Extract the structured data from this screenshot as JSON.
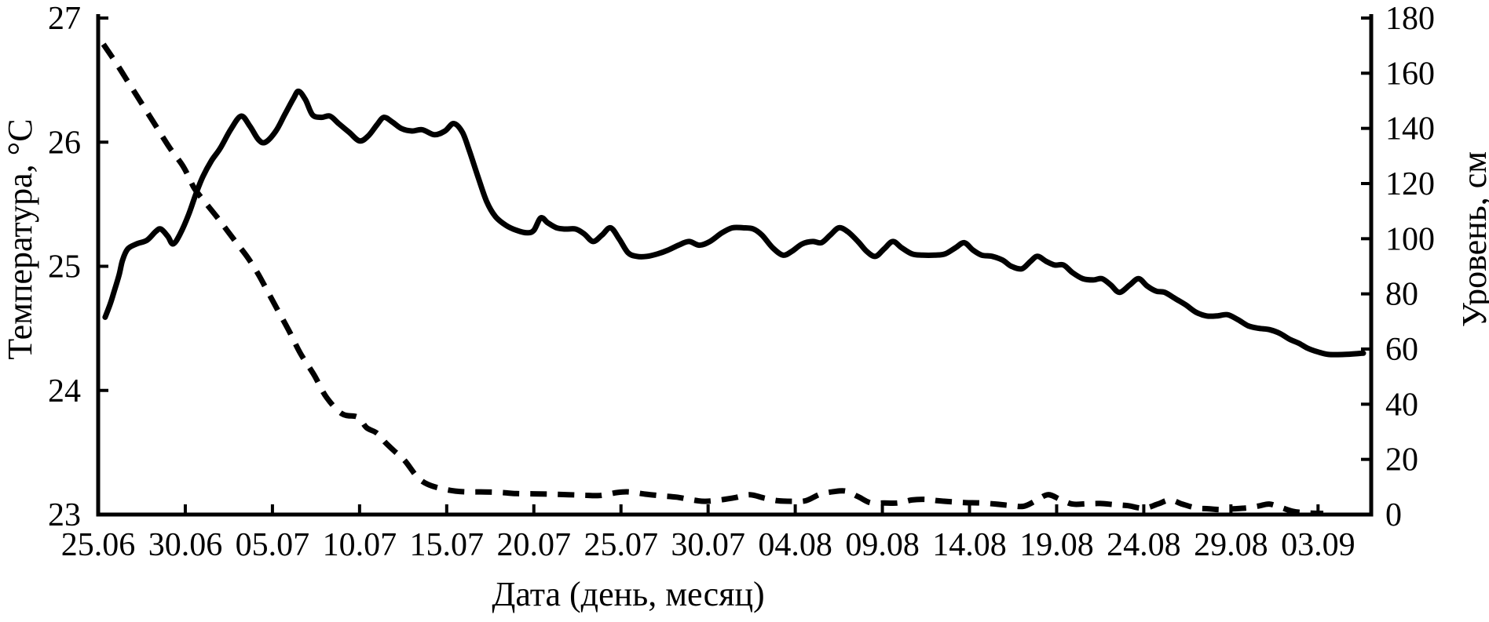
{
  "page": {
    "background": "#ffffff",
    "foreground": "#000000"
  },
  "chart_data": {
    "type": "line",
    "title": "",
    "grid": false,
    "legend": "none",
    "x_axis": {
      "label": "Дата (день, месяц)",
      "tick_labels": [
        "25.06",
        "30.06",
        "05.07",
        "10.07",
        "15.07",
        "20.07",
        "25.07",
        "30.07",
        "04.08",
        "09.08",
        "14.08",
        "19.08",
        "24.08",
        "29.08",
        "03.09"
      ],
      "tick_interval_days": 5,
      "range_days": [
        0,
        73.05
      ]
    },
    "y_left": {
      "label": "Температура, °C",
      "ticks": [
        "23",
        "24",
        "25",
        "26",
        "27"
      ],
      "tick_values": [
        23,
        24,
        25,
        26,
        27
      ],
      "range": [
        23,
        27
      ]
    },
    "y_right": {
      "label": "Уровень, см",
      "ticks": [
        "0",
        "20",
        "40",
        "60",
        "80",
        "100",
        "120",
        "140",
        "160",
        "180"
      ],
      "tick_values": [
        0,
        20,
        40,
        60,
        80,
        100,
        120,
        140,
        160,
        180
      ],
      "range": [
        0,
        180
      ]
    },
    "series": [
      {
        "name": "temperature",
        "axis": "left",
        "style": "solid",
        "color": "#000000",
        "points": [
          [
            0.4,
            24.59
          ],
          [
            0.7,
            24.7
          ],
          [
            0.9,
            24.79
          ],
          [
            1.2,
            24.93
          ],
          [
            1.4,
            25.05
          ],
          [
            1.7,
            25.14
          ],
          [
            2.2,
            25.18
          ],
          [
            2.8,
            25.21
          ],
          [
            3.3,
            25.28
          ],
          [
            3.6,
            25.3
          ],
          [
            4.0,
            25.24
          ],
          [
            4.3,
            25.18
          ],
          [
            4.7,
            25.26
          ],
          [
            5.2,
            25.42
          ],
          [
            5.6,
            25.58
          ],
          [
            6.0,
            25.72
          ],
          [
            6.5,
            25.85
          ],
          [
            7.0,
            25.95
          ],
          [
            7.6,
            26.1
          ],
          [
            8.2,
            26.21
          ],
          [
            8.7,
            26.13
          ],
          [
            9.2,
            26.02
          ],
          [
            9.6,
            26.0
          ],
          [
            10.2,
            26.09
          ],
          [
            10.7,
            26.22
          ],
          [
            11.2,
            26.35
          ],
          [
            11.5,
            26.41
          ],
          [
            11.9,
            26.34
          ],
          [
            12.3,
            26.22
          ],
          [
            12.8,
            26.2
          ],
          [
            13.3,
            26.21
          ],
          [
            13.8,
            26.15
          ],
          [
            14.4,
            26.08
          ],
          [
            15.0,
            26.01
          ],
          [
            15.5,
            26.05
          ],
          [
            16.0,
            26.14
          ],
          [
            16.4,
            26.2
          ],
          [
            16.9,
            26.16
          ],
          [
            17.4,
            26.11
          ],
          [
            18.0,
            26.09
          ],
          [
            18.6,
            26.1
          ],
          [
            19.3,
            26.06
          ],
          [
            19.9,
            26.09
          ],
          [
            20.4,
            26.15
          ],
          [
            20.9,
            26.08
          ],
          [
            21.3,
            25.93
          ],
          [
            21.8,
            25.72
          ],
          [
            22.3,
            25.52
          ],
          [
            22.8,
            25.4
          ],
          [
            23.4,
            25.33
          ],
          [
            24.0,
            25.29
          ],
          [
            24.6,
            25.27
          ],
          [
            25.0,
            25.29
          ],
          [
            25.4,
            25.39
          ],
          [
            25.8,
            25.35
          ],
          [
            26.3,
            25.31
          ],
          [
            26.8,
            25.3
          ],
          [
            27.4,
            25.3
          ],
          [
            27.9,
            25.26
          ],
          [
            28.4,
            25.2
          ],
          [
            28.9,
            25.25
          ],
          [
            29.4,
            25.31
          ],
          [
            29.9,
            25.22
          ],
          [
            30.4,
            25.11
          ],
          [
            30.9,
            25.08
          ],
          [
            31.5,
            25.08
          ],
          [
            32.1,
            25.1
          ],
          [
            32.7,
            25.13
          ],
          [
            33.3,
            25.17
          ],
          [
            33.9,
            25.2
          ],
          [
            34.5,
            25.17
          ],
          [
            35.1,
            25.2
          ],
          [
            35.8,
            25.27
          ],
          [
            36.4,
            25.31
          ],
          [
            37.0,
            25.31
          ],
          [
            37.6,
            25.3
          ],
          [
            38.1,
            25.25
          ],
          [
            38.7,
            25.15
          ],
          [
            39.3,
            25.09
          ],
          [
            39.8,
            25.12
          ],
          [
            40.4,
            25.18
          ],
          [
            41.0,
            25.2
          ],
          [
            41.5,
            25.19
          ],
          [
            42.0,
            25.25
          ],
          [
            42.5,
            25.31
          ],
          [
            43.0,
            25.28
          ],
          [
            43.6,
            25.2
          ],
          [
            44.1,
            25.12
          ],
          [
            44.6,
            25.08
          ],
          [
            45.1,
            25.14
          ],
          [
            45.6,
            25.2
          ],
          [
            46.1,
            25.15
          ],
          [
            46.7,
            25.1
          ],
          [
            47.3,
            25.09
          ],
          [
            48.0,
            25.09
          ],
          [
            48.6,
            25.1
          ],
          [
            49.2,
            25.15
          ],
          [
            49.7,
            25.19
          ],
          [
            50.2,
            25.13
          ],
          [
            50.7,
            25.09
          ],
          [
            51.3,
            25.08
          ],
          [
            51.9,
            25.05
          ],
          [
            52.4,
            25.0
          ],
          [
            53.0,
            24.98
          ],
          [
            53.5,
            25.04
          ],
          [
            53.9,
            25.08
          ],
          [
            54.4,
            25.04
          ],
          [
            54.9,
            25.01
          ],
          [
            55.4,
            25.01
          ],
          [
            55.9,
            24.95
          ],
          [
            56.5,
            24.9
          ],
          [
            57.1,
            24.89
          ],
          [
            57.6,
            24.9
          ],
          [
            58.1,
            24.85
          ],
          [
            58.6,
            24.79
          ],
          [
            59.2,
            24.85
          ],
          [
            59.7,
            24.9
          ],
          [
            60.2,
            24.84
          ],
          [
            60.7,
            24.8
          ],
          [
            61.2,
            24.79
          ],
          [
            61.8,
            24.74
          ],
          [
            62.4,
            24.69
          ],
          [
            63.0,
            24.63
          ],
          [
            63.6,
            24.6
          ],
          [
            64.2,
            24.6
          ],
          [
            64.8,
            24.61
          ],
          [
            65.4,
            24.57
          ],
          [
            66.0,
            24.52
          ],
          [
            66.6,
            24.5
          ],
          [
            67.2,
            24.49
          ],
          [
            67.8,
            24.46
          ],
          [
            68.4,
            24.41
          ],
          [
            68.9,
            24.38
          ],
          [
            69.4,
            24.34
          ],
          [
            70.0,
            24.31
          ],
          [
            70.6,
            24.29
          ],
          [
            71.5,
            24.29
          ],
          [
            72.6,
            24.3
          ]
        ]
      },
      {
        "name": "level",
        "axis": "right",
        "style": "dashed",
        "color": "#000000",
        "points": [
          [
            0.3,
            170.5
          ],
          [
            1.0,
            164
          ],
          [
            1.7,
            157
          ],
          [
            2.5,
            149
          ],
          [
            3.3,
            141
          ],
          [
            4.1,
            133
          ],
          [
            4.9,
            126
          ],
          [
            5.5,
            118.5
          ],
          [
            6.1,
            113.5
          ],
          [
            6.8,
            108
          ],
          [
            7.4,
            103
          ],
          [
            8.0,
            98
          ],
          [
            8.6,
            93
          ],
          [
            9.2,
            87
          ],
          [
            9.8,
            80
          ],
          [
            10.4,
            73
          ],
          [
            11.0,
            66
          ],
          [
            11.6,
            58.5
          ],
          [
            12.4,
            50.5
          ],
          [
            13.1,
            42.5
          ],
          [
            14.0,
            36.5
          ],
          [
            14.9,
            35.3
          ],
          [
            15.4,
            31.5
          ],
          [
            16.0,
            29.5
          ],
          [
            16.5,
            26
          ],
          [
            17.0,
            23
          ],
          [
            17.6,
            19.5
          ],
          [
            18.3,
            13.7
          ],
          [
            18.9,
            11
          ],
          [
            19.7,
            9.4
          ],
          [
            20.5,
            8.5
          ],
          [
            21.3,
            8.2
          ],
          [
            22.2,
            8.2
          ],
          [
            23.1,
            8.0
          ],
          [
            24.0,
            7.6
          ],
          [
            25.0,
            7.5
          ],
          [
            26.0,
            7.4
          ],
          [
            27.0,
            7.2
          ],
          [
            27.9,
            7.0
          ],
          [
            28.8,
            6.9
          ],
          [
            29.8,
            8.0
          ],
          [
            30.5,
            8.2
          ],
          [
            31.4,
            7.4
          ],
          [
            32.3,
            6.8
          ],
          [
            33.2,
            6.3
          ],
          [
            34.0,
            5.4
          ],
          [
            34.8,
            4.8
          ],
          [
            35.7,
            5.3
          ],
          [
            36.6,
            6.2
          ],
          [
            37.4,
            7.2
          ],
          [
            38.2,
            6.0
          ],
          [
            39.0,
            5.0
          ],
          [
            39.8,
            4.8
          ],
          [
            40.6,
            5.0
          ],
          [
            41.4,
            7.3
          ],
          [
            42.2,
            8.3
          ],
          [
            42.9,
            8.5
          ],
          [
            43.6,
            6.5
          ],
          [
            44.3,
            4.3
          ],
          [
            45.1,
            4.2
          ],
          [
            45.9,
            4.2
          ],
          [
            46.7,
            5.3
          ],
          [
            47.5,
            5.5
          ],
          [
            48.2,
            5.0
          ],
          [
            49.0,
            4.6
          ],
          [
            49.8,
            4.3
          ],
          [
            50.6,
            4.2
          ],
          [
            51.5,
            3.8
          ],
          [
            52.3,
            3.3
          ],
          [
            53.1,
            3.0
          ],
          [
            53.8,
            5.0
          ],
          [
            54.5,
            7.2
          ],
          [
            55.2,
            5.5
          ],
          [
            55.9,
            3.8
          ],
          [
            56.7,
            3.9
          ],
          [
            57.5,
            4.0
          ],
          [
            58.3,
            3.6
          ],
          [
            59.1,
            3.2
          ],
          [
            60.0,
            2.3
          ],
          [
            60.8,
            3.8
          ],
          [
            61.5,
            5.3
          ],
          [
            62.2,
            3.8
          ],
          [
            63.0,
            2.4
          ],
          [
            63.7,
            2.1
          ],
          [
            64.4,
            1.8
          ],
          [
            65.2,
            2.1
          ],
          [
            65.9,
            2.4
          ],
          [
            66.6,
            3.1
          ],
          [
            67.2,
            3.8
          ],
          [
            67.9,
            2.5
          ],
          [
            68.6,
            1.1
          ],
          [
            69.4,
            0.6
          ],
          [
            70.3,
            0.4
          ]
        ]
      }
    ]
  }
}
